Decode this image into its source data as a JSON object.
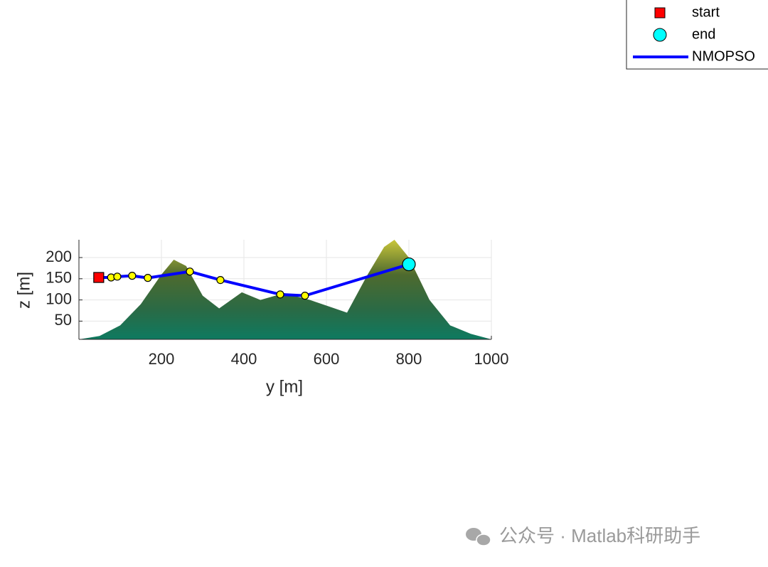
{
  "chart_data": {
    "type": "line",
    "xlabel": "y [m]",
    "ylabel": "z [m]",
    "xlim": [
      0,
      1000
    ],
    "xticks": [
      200,
      400,
      600,
      800,
      1000
    ],
    "ylim": [
      7,
      242
    ],
    "yticks": [
      50,
      100,
      150,
      200
    ],
    "grid": true,
    "legend_position": "top-right",
    "terrain": {
      "x": [
        0,
        50,
        100,
        150,
        200,
        230,
        260,
        300,
        340,
        395,
        440,
        498,
        560,
        620,
        650,
        700,
        740,
        765,
        800,
        850,
        900,
        950,
        1000
      ],
      "values": [
        7,
        15,
        40,
        90,
        160,
        195,
        180,
        110,
        80,
        118,
        100,
        116,
        100,
        80,
        70,
        160,
        225,
        242,
        200,
        100,
        40,
        20,
        7
      ]
    },
    "series": [
      {
        "name": "start",
        "color": "#ff0000",
        "marker": "square",
        "x": [
          48
        ],
        "values": [
          153
        ]
      },
      {
        "name": "end",
        "color": "#00ffff",
        "marker": "circle",
        "x": [
          800
        ],
        "values": [
          184
        ]
      },
      {
        "name": "NMOPSO",
        "color": "#0000ff",
        "waypoint_color": "#ffff00",
        "x": [
          48,
          78,
          93,
          129,
          167,
          269,
          343,
          488,
          548,
          800
        ],
        "values": [
          153,
          153,
          155,
          157,
          152,
          167,
          147,
          113,
          110,
          184
        ]
      }
    ]
  },
  "watermark": "公众号 · Matlab科研助手"
}
